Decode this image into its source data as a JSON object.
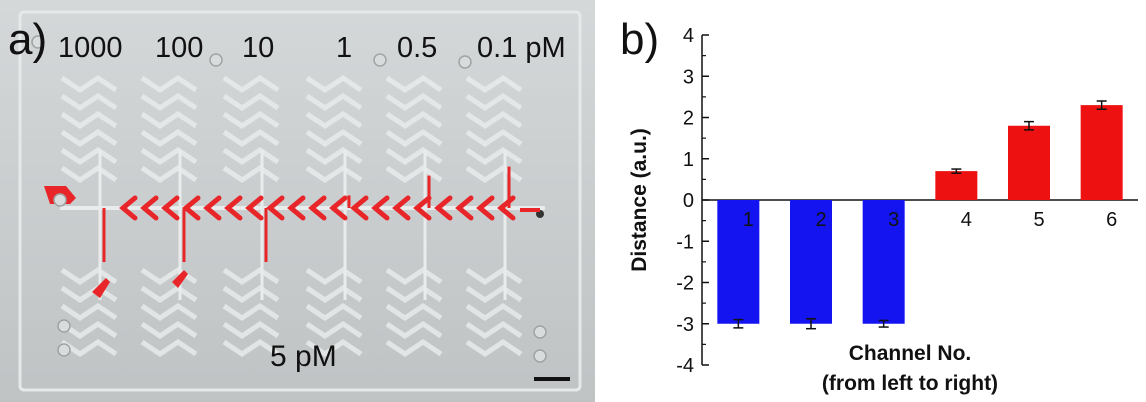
{
  "figure": {
    "panel_a": {
      "letter": "a)",
      "concentration_labels": [
        "1000",
        "100",
        "10",
        "1",
        "0.5",
        "0.1 pM"
      ],
      "sample_label": "5 pM",
      "colors": {
        "chip_background": "#c6cacb",
        "channel_dye": "#e8262a",
        "channel_outline": "#e9ecec"
      }
    },
    "panel_b": {
      "letter": "b)"
    }
  },
  "chart_data": {
    "type": "bar",
    "title": "",
    "xlabel": "Channel No.",
    "xlabel_line2": "(from left to right)",
    "ylabel": "Distance (a.u.)",
    "ylim": [
      -4,
      4
    ],
    "yticks": [
      -4,
      -3,
      -2,
      -1,
      0,
      1,
      2,
      3,
      4
    ],
    "categories": [
      "1",
      "2",
      "3",
      "4",
      "5",
      "6"
    ],
    "values": [
      -3.0,
      -3.0,
      -3.0,
      0.7,
      1.8,
      2.3
    ],
    "errors": [
      0.1,
      0.12,
      0.08,
      0.05,
      0.1,
      0.1
    ],
    "bar_colors": [
      "#1414f0",
      "#1414f0",
      "#1414f0",
      "#ee1111",
      "#ee1111",
      "#ee1111"
    ],
    "grid": false,
    "legend": "none"
  }
}
